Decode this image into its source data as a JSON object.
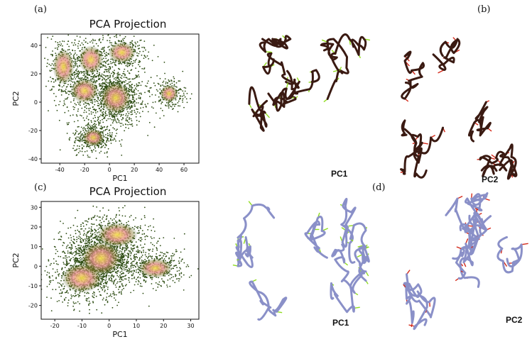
{
  "panels": {
    "a": {
      "letter": "(a)"
    },
    "b": {
      "letter": "(b)"
    },
    "c": {
      "letter": "(c)"
    },
    "d": {
      "letter": "(d)"
    }
  },
  "structure_labels": {
    "top_left": "PC1",
    "top_right": "PC2",
    "bottom_left": "PC1",
    "bottom_right": "PC2"
  },
  "colors": {
    "scatter_edge": "#2e4d14",
    "scatter_mid": "#8a7a2a",
    "density_core": "#f1e04a",
    "density_pink": "#e89090",
    "arrow_green": "#8fdc1e",
    "arrow_red": "#d42a1a",
    "backbone_dark": "#3a1a12",
    "backbone_blue": "#8a90c8"
  },
  "chart_data": [
    {
      "type": "scatter",
      "title": "PCA Projection",
      "xlabel": "PC1",
      "ylabel": "PC2",
      "xlim": [
        -55,
        72
      ],
      "ylim": [
        -43,
        48
      ],
      "xticks": [
        -40,
        -20,
        0,
        20,
        40,
        60
      ],
      "yticks": [
        -40,
        -20,
        0,
        20,
        40
      ],
      "grid": false,
      "clusters": [
        {
          "cx": 5,
          "cy": 3,
          "sx": 10,
          "sy": 9,
          "weight": 0.35
        },
        {
          "cx": -20,
          "cy": 8,
          "sx": 9,
          "sy": 7,
          "weight": 0.12
        },
        {
          "cx": -37,
          "cy": 25,
          "sx": 7,
          "sy": 10,
          "weight": 0.1
        },
        {
          "cx": -13,
          "cy": -25,
          "sx": 7,
          "sy": 5,
          "weight": 0.15
        },
        {
          "cx": 48,
          "cy": 6,
          "sx": 6,
          "sy": 5,
          "weight": 0.08
        },
        {
          "cx": 10,
          "cy": 35,
          "sx": 9,
          "sy": 6,
          "weight": 0.1
        },
        {
          "cx": -15,
          "cy": 30,
          "sx": 8,
          "sy": 8,
          "weight": 0.1
        }
      ]
    },
    {
      "type": "scatter",
      "title": "PCA Projection",
      "xlabel": "PC1",
      "ylabel": "PC2",
      "xlim": [
        -25,
        33
      ],
      "ylim": [
        -27,
        33
      ],
      "xticks": [
        -20,
        -10,
        0,
        10,
        20,
        30
      ],
      "yticks": [
        -20,
        -10,
        0,
        10,
        20,
        30
      ],
      "grid": false,
      "clusters": [
        {
          "cx": -3,
          "cy": 4,
          "sx": 6,
          "sy": 7,
          "weight": 0.55
        },
        {
          "cx": -10,
          "cy": -6,
          "sx": 6,
          "sy": 6,
          "weight": 0.18
        },
        {
          "cx": 17,
          "cy": -1,
          "sx": 5,
          "sy": 4,
          "weight": 0.15
        },
        {
          "cx": 3,
          "cy": 16,
          "sx": 6,
          "sy": 5,
          "weight": 0.12
        }
      ]
    }
  ]
}
